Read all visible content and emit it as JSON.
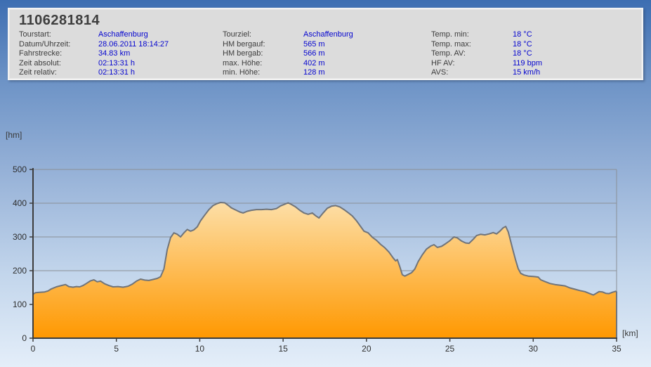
{
  "summary": {
    "title": "1106281814",
    "columns": [
      {
        "rows": [
          {
            "label": "Tourstart:",
            "value": "Aschaffenburg"
          },
          {
            "label": "Datum/Uhrzeit:",
            "value": "28.06.2011 18:14:27"
          },
          {
            "label": "Fahrstrecke:",
            "value": "34.83 km"
          },
          {
            "label": "Zeit absolut:",
            "value": "02:13:31 h"
          },
          {
            "label": "Zeit relativ:",
            "value": "02:13:31 h"
          }
        ]
      },
      {
        "rows": [
          {
            "label": "Tourziel:",
            "value": "Aschaffenburg"
          },
          {
            "label": "HM bergauf:",
            "value": "565 m"
          },
          {
            "label": "HM bergab:",
            "value": "566 m"
          },
          {
            "label": "max. Höhe:",
            "value": "402 m"
          },
          {
            "label": "min. Höhe:",
            "value": "128 m"
          }
        ]
      },
      {
        "rows": [
          {
            "label": "Temp. min:",
            "value": "18 °C"
          },
          {
            "label": "Temp. max:",
            "value": "18 °C"
          },
          {
            "label": "Temp. AV:",
            "value": "18 °C"
          },
          {
            "label": "HF AV:",
            "value": "119 bpm"
          },
          {
            "label": "AVS:",
            "value": "15 km/h"
          }
        ]
      }
    ]
  },
  "theme": {
    "value_text_color": "#0404cf",
    "panel_bg": "#dcdcdc",
    "background_top": "#3d6eb2",
    "background_bottom": "#e4eef9"
  },
  "chart_data": {
    "type": "area",
    "title": "",
    "xlabel": "[km]",
    "ylabel": "[hm]",
    "xlim": [
      0,
      35
    ],
    "ylim": [
      0,
      500
    ],
    "x_ticks": [
      0,
      5,
      10,
      15,
      20,
      25,
      30,
      35
    ],
    "y_ticks": [
      0,
      100,
      200,
      300,
      400,
      500
    ],
    "grid": true,
    "legend": "none",
    "series_name": "elevation-profile",
    "colors": {
      "fill_top": "#fcf0d0",
      "fill_bottom": "#ff9800",
      "line": "#70747a",
      "grid": "#8a8f96",
      "axis": "#3c3c3c",
      "tick_text": "#2e2e2e"
    },
    "profile_km_m": [
      [
        0.0,
        130
      ],
      [
        0.15,
        135
      ],
      [
        0.4,
        136
      ],
      [
        0.7,
        137
      ],
      [
        0.9,
        140
      ],
      [
        1.1,
        146
      ],
      [
        1.4,
        152
      ],
      [
        1.7,
        156
      ],
      [
        1.95,
        159
      ],
      [
        2.15,
        153
      ],
      [
        2.4,
        151
      ],
      [
        2.6,
        153
      ],
      [
        2.8,
        152
      ],
      [
        3.0,
        156
      ],
      [
        3.2,
        162
      ],
      [
        3.45,
        170
      ],
      [
        3.65,
        173
      ],
      [
        3.85,
        167
      ],
      [
        4.05,
        169
      ],
      [
        4.3,
        161
      ],
      [
        4.55,
        156
      ],
      [
        4.8,
        152
      ],
      [
        5.1,
        153
      ],
      [
        5.4,
        151
      ],
      [
        5.7,
        154
      ],
      [
        5.95,
        160
      ],
      [
        6.2,
        169
      ],
      [
        6.45,
        175
      ],
      [
        6.7,
        172
      ],
      [
        6.95,
        171
      ],
      [
        7.2,
        174
      ],
      [
        7.45,
        177
      ],
      [
        7.65,
        182
      ],
      [
        7.85,
        205
      ],
      [
        8.05,
        262
      ],
      [
        8.25,
        298
      ],
      [
        8.45,
        312
      ],
      [
        8.65,
        308
      ],
      [
        8.85,
        300
      ],
      [
        9.05,
        312
      ],
      [
        9.25,
        322
      ],
      [
        9.45,
        317
      ],
      [
        9.65,
        321
      ],
      [
        9.85,
        330
      ],
      [
        10.05,
        348
      ],
      [
        10.3,
        365
      ],
      [
        10.55,
        381
      ],
      [
        10.8,
        393
      ],
      [
        11.05,
        399
      ],
      [
        11.25,
        402
      ],
      [
        11.5,
        401
      ],
      [
        11.7,
        394
      ],
      [
        11.9,
        386
      ],
      [
        12.15,
        380
      ],
      [
        12.4,
        374
      ],
      [
        12.6,
        371
      ],
      [
        12.85,
        376
      ],
      [
        13.1,
        379
      ],
      [
        13.4,
        381
      ],
      [
        13.7,
        381
      ],
      [
        14.0,
        382
      ],
      [
        14.3,
        381
      ],
      [
        14.6,
        384
      ],
      [
        14.85,
        392
      ],
      [
        15.1,
        397
      ],
      [
        15.3,
        401
      ],
      [
        15.5,
        396
      ],
      [
        15.75,
        389
      ],
      [
        16.0,
        379
      ],
      [
        16.25,
        371
      ],
      [
        16.5,
        367
      ],
      [
        16.75,
        371
      ],
      [
        16.95,
        363
      ],
      [
        17.15,
        356
      ],
      [
        17.4,
        371
      ],
      [
        17.65,
        385
      ],
      [
        17.9,
        391
      ],
      [
        18.15,
        393
      ],
      [
        18.4,
        389
      ],
      [
        18.65,
        381
      ],
      [
        18.9,
        372
      ],
      [
        19.15,
        362
      ],
      [
        19.4,
        348
      ],
      [
        19.65,
        331
      ],
      [
        19.85,
        317
      ],
      [
        20.1,
        312
      ],
      [
        20.35,
        299
      ],
      [
        20.6,
        290
      ],
      [
        20.85,
        278
      ],
      [
        21.1,
        268
      ],
      [
        21.35,
        255
      ],
      [
        21.6,
        238
      ],
      [
        21.75,
        229
      ],
      [
        21.85,
        233
      ],
      [
        22.0,
        212
      ],
      [
        22.15,
        188
      ],
      [
        22.3,
        184
      ],
      [
        22.5,
        189
      ],
      [
        22.7,
        194
      ],
      [
        22.9,
        205
      ],
      [
        23.1,
        227
      ],
      [
        23.35,
        247
      ],
      [
        23.6,
        264
      ],
      [
        23.85,
        273
      ],
      [
        24.05,
        277
      ],
      [
        24.25,
        269
      ],
      [
        24.5,
        272
      ],
      [
        24.75,
        280
      ],
      [
        25.0,
        289
      ],
      [
        25.25,
        300
      ],
      [
        25.45,
        297
      ],
      [
        25.7,
        288
      ],
      [
        25.95,
        282
      ],
      [
        26.15,
        281
      ],
      [
        26.4,
        293
      ],
      [
        26.6,
        304
      ],
      [
        26.85,
        308
      ],
      [
        27.1,
        306
      ],
      [
        27.35,
        309
      ],
      [
        27.6,
        313
      ],
      [
        27.8,
        309
      ],
      [
        28.0,
        317
      ],
      [
        28.2,
        327
      ],
      [
        28.35,
        331
      ],
      [
        28.5,
        315
      ],
      [
        28.65,
        287
      ],
      [
        28.8,
        258
      ],
      [
        28.95,
        230
      ],
      [
        29.1,
        206
      ],
      [
        29.25,
        192
      ],
      [
        29.45,
        187
      ],
      [
        29.7,
        184
      ],
      [
        30.0,
        183
      ],
      [
        30.3,
        181
      ],
      [
        30.45,
        173
      ],
      [
        30.7,
        168
      ],
      [
        31.0,
        162
      ],
      [
        31.3,
        159
      ],
      [
        31.6,
        157
      ],
      [
        31.9,
        155
      ],
      [
        32.2,
        149
      ],
      [
        32.5,
        145
      ],
      [
        32.8,
        141
      ],
      [
        33.1,
        138
      ],
      [
        33.35,
        133
      ],
      [
        33.6,
        128
      ],
      [
        33.75,
        132
      ],
      [
        33.95,
        138
      ],
      [
        34.15,
        137
      ],
      [
        34.35,
        133
      ],
      [
        34.55,
        132
      ],
      [
        34.75,
        136
      ],
      [
        34.95,
        139
      ],
      [
        35.0,
        137
      ]
    ]
  }
}
